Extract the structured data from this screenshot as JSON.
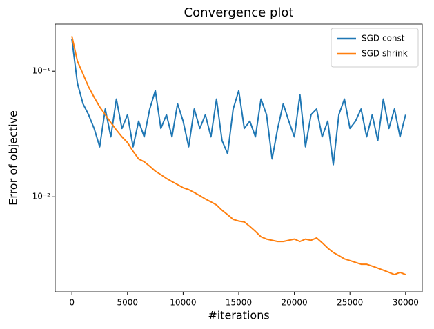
{
  "chart_data": {
    "type": "line",
    "title": "Convergence plot",
    "x_label": "#iterations",
    "y_label": "Error of objective",
    "x": [
      0,
      500,
      1000,
      1500,
      2000,
      2500,
      3000,
      3500,
      4000,
      4500,
      5000,
      5500,
      6000,
      6500,
      7000,
      7500,
      8000,
      8500,
      9000,
      9500,
      10000,
      10500,
      11000,
      11500,
      12000,
      12500,
      13000,
      13500,
      14000,
      14500,
      15000,
      15500,
      16000,
      16500,
      17000,
      17500,
      18000,
      18500,
      19000,
      19500,
      20000,
      20500,
      21000,
      21500,
      22000,
      22500,
      23000,
      23500,
      24000,
      24500,
      25000,
      25500,
      26000,
      26500,
      27000,
      27500,
      28000,
      28500,
      29000,
      29500,
      30000
    ],
    "series": [
      {
        "name": "SGD const",
        "color": "#1f77b4",
        "values": [
          0.18,
          0.08,
          0.055,
          0.045,
          0.035,
          0.025,
          0.05,
          0.03,
          0.06,
          0.035,
          0.045,
          0.025,
          0.04,
          0.03,
          0.05,
          0.07,
          0.035,
          0.045,
          0.03,
          0.055,
          0.04,
          0.025,
          0.05,
          0.035,
          0.045,
          0.03,
          0.06,
          0.028,
          0.022,
          0.05,
          0.07,
          0.035,
          0.04,
          0.03,
          0.06,
          0.045,
          0.02,
          0.035,
          0.055,
          0.04,
          0.03,
          0.065,
          0.025,
          0.045,
          0.05,
          0.03,
          0.04,
          0.018,
          0.045,
          0.06,
          0.035,
          0.04,
          0.05,
          0.03,
          0.045,
          0.028,
          0.06,
          0.035,
          0.05,
          0.03,
          0.045
        ]
      },
      {
        "name": "SGD shrink",
        "color": "#ff7f0e",
        "values": [
          0.19,
          0.12,
          0.095,
          0.075,
          0.062,
          0.052,
          0.045,
          0.039,
          0.034,
          0.03,
          0.027,
          0.023,
          0.02,
          0.019,
          0.0175,
          0.016,
          0.015,
          0.014,
          0.0132,
          0.0125,
          0.0118,
          0.0114,
          0.0108,
          0.0102,
          0.0096,
          0.0091,
          0.0086,
          0.0078,
          0.0072,
          0.0066,
          0.0064,
          0.0063,
          0.0058,
          0.0053,
          0.0048,
          0.0046,
          0.0045,
          0.0044,
          0.0044,
          0.0045,
          0.0046,
          0.0044,
          0.0046,
          0.0045,
          0.0047,
          0.0043,
          0.0039,
          0.0036,
          0.0034,
          0.0032,
          0.0031,
          0.003,
          0.0029,
          0.0029,
          0.0028,
          0.0027,
          0.0026,
          0.0025,
          0.0024,
          0.0025,
          0.0024
        ]
      }
    ],
    "xlim": [
      -1500,
      31500
    ],
    "xticks": [
      0,
      5000,
      10000,
      15000,
      20000,
      25000,
      30000
    ],
    "ylim": [
      0.00175,
      0.237
    ],
    "yticks": [
      {
        "value": 0.01,
        "label": "10⁻²"
      },
      {
        "value": 0.1,
        "label": "10⁻¹"
      }
    ],
    "y_scale": "log",
    "grid": false,
    "legend": "upper right"
  }
}
